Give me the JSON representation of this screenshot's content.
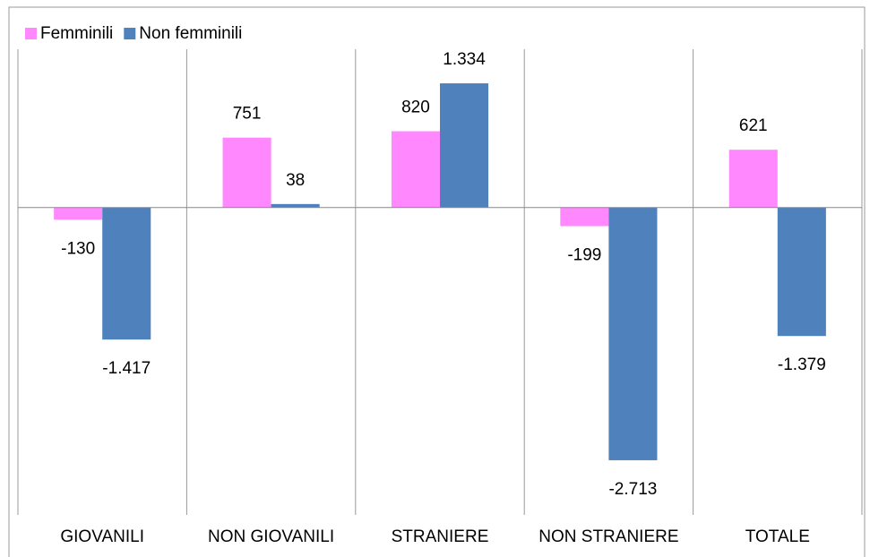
{
  "chart_data": {
    "type": "bar",
    "categories": [
      "GIOVANILI",
      "NON GIOVANILI",
      "STRANIERE",
      "NON STRANIERE",
      "TOTALE"
    ],
    "series": [
      {
        "name": "Femminili",
        "color": "#ff88ff",
        "values": [
          -130,
          751,
          820,
          -199,
          621
        ],
        "value_labels": [
          "-130",
          "751",
          "820",
          "-199",
          "621"
        ]
      },
      {
        "name": "Non femminili",
        "color": "#4f81bd",
        "values": [
          -1417,
          38,
          1334,
          -2713,
          -1379
        ],
        "value_labels": [
          "-1.417",
          "38",
          "1.334",
          "-2.713",
          "-1.379"
        ]
      }
    ],
    "ylim": [
      -3300,
      1700
    ],
    "legend": "top-left",
    "grid": "vertical"
  }
}
